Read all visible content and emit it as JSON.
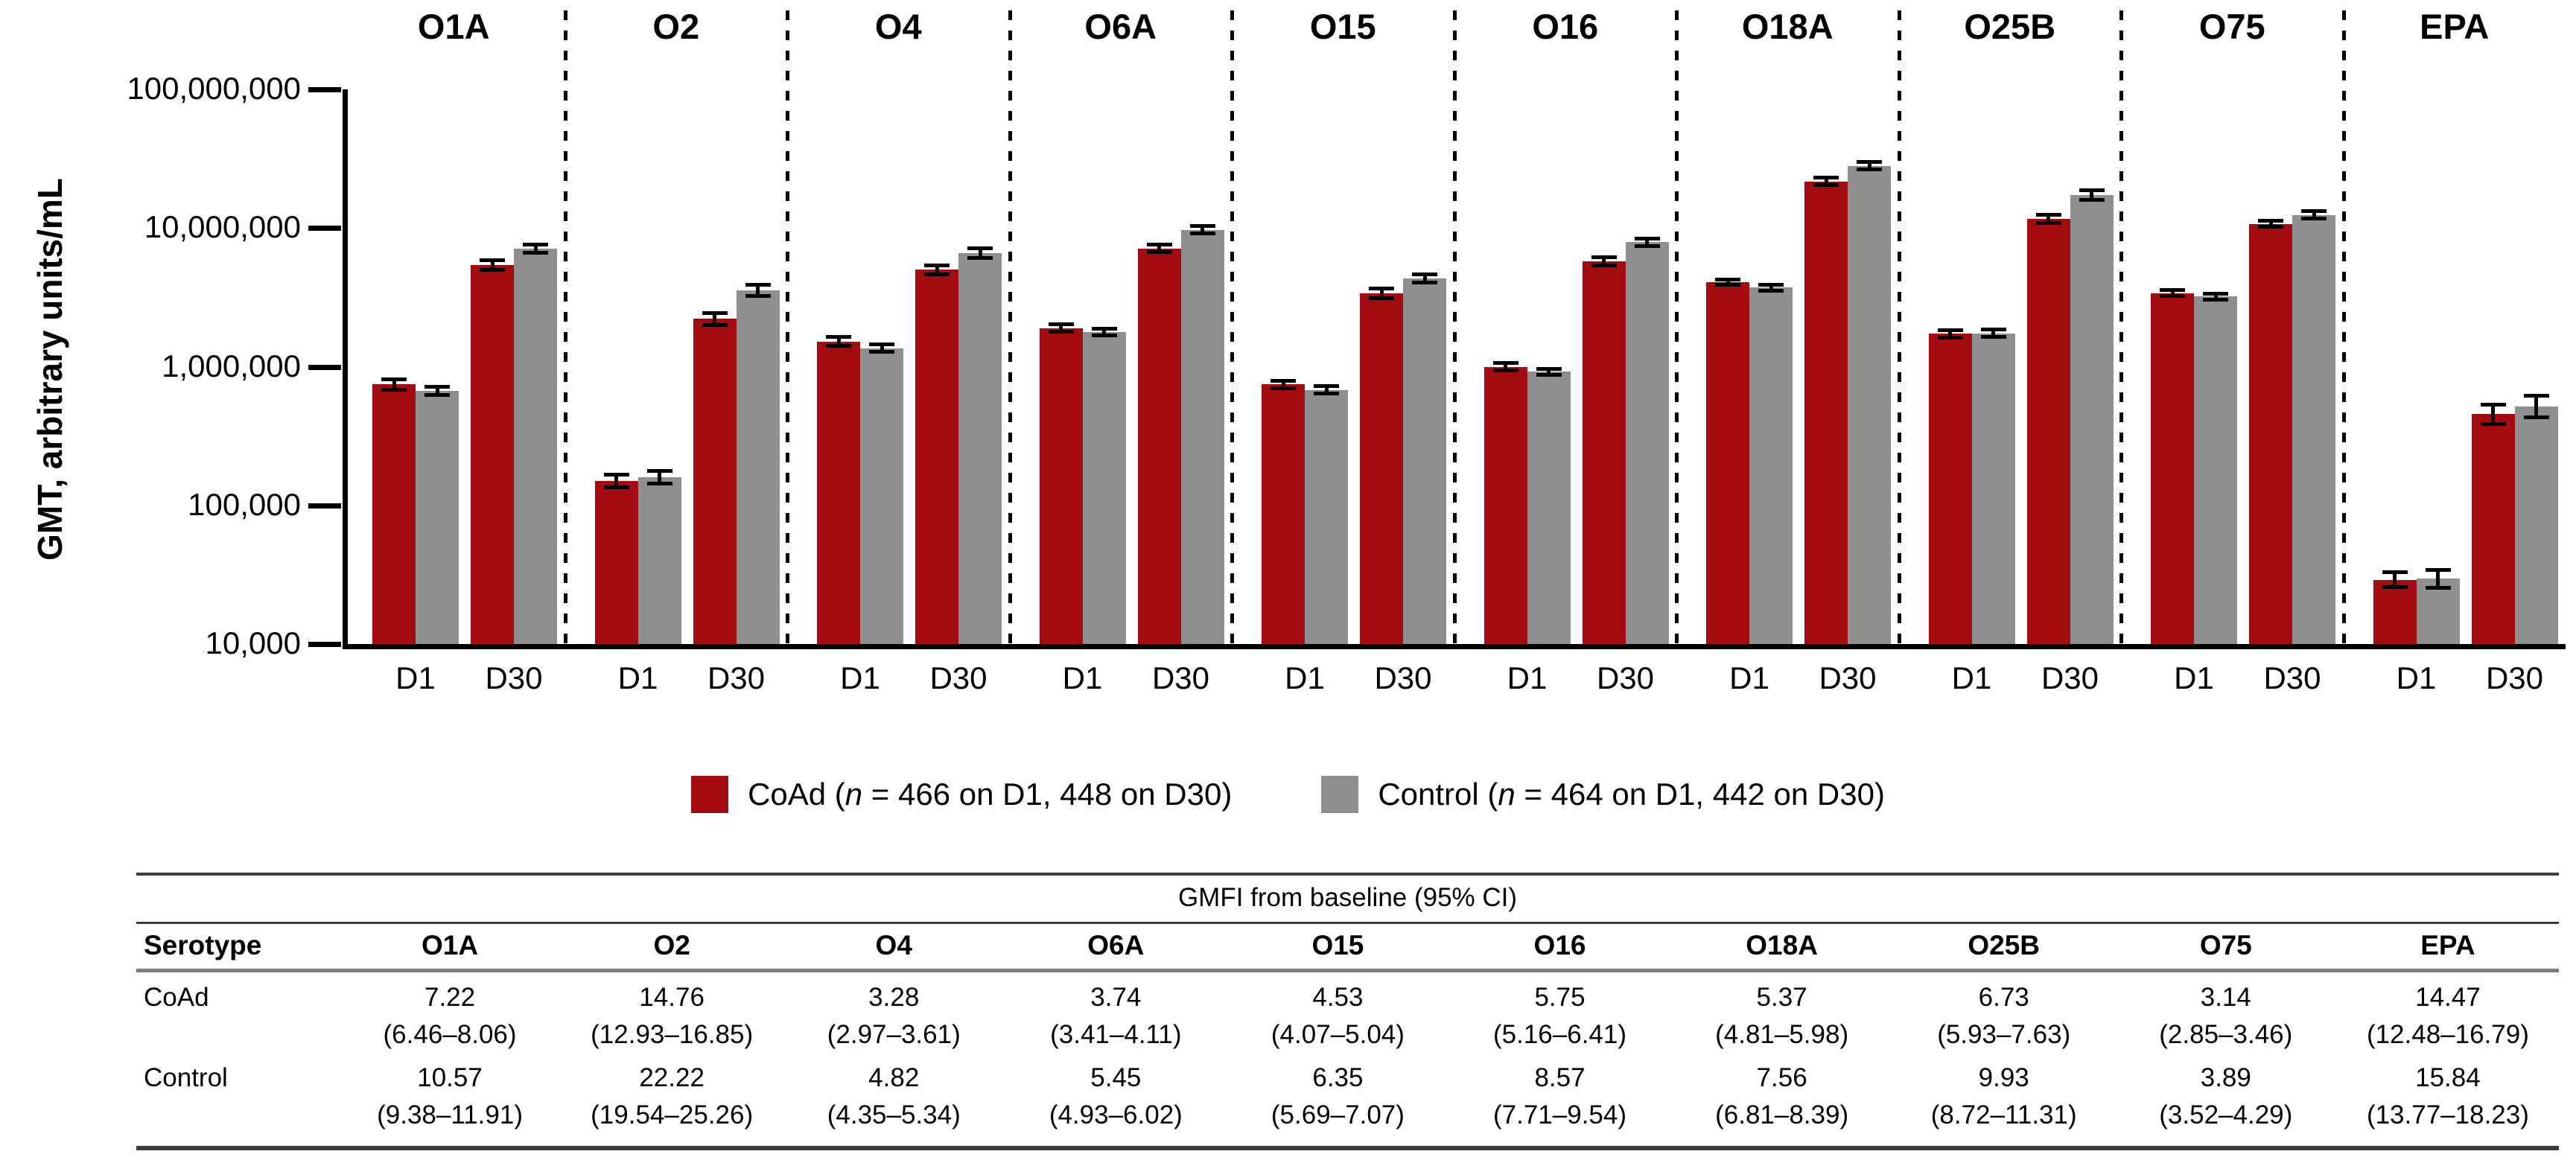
{
  "figure": {
    "y_axis_label": "GMT, arbitrary units/mL",
    "y_ticks": [
      "100,000,000",
      "10,000,000",
      "1,000,000",
      "100,000",
      "10,000"
    ]
  },
  "legend": {
    "items": [
      {
        "series": "CoAd",
        "color": "#A30D12",
        "prefix": "CoAd (",
        "n": "n",
        "rest": " = 466 on D1, 448 on D30)"
      },
      {
        "series": "Control",
        "color": "#8F8F8F",
        "prefix": "Control (",
        "n": "n",
        "rest": " = 464 on D1, 442 on D30)"
      }
    ]
  },
  "chart_data": {
    "type": "bar",
    "y_scale": "log10",
    "ylim": [
      10000,
      100000000
    ],
    "ylabel": "GMT, arbitrary units/mL",
    "groups": [
      "D1",
      "D30"
    ],
    "series": [
      "CoAd",
      "Control"
    ],
    "series_colors": {
      "CoAd": "#A30D12",
      "Control": "#8F8F8F"
    },
    "error_bars": "95% CI shown as whiskers; 'err' = estimated upper multiplicative factor per bar [D1 CoAd, D1 Control, D30 CoAd, D30 Control]",
    "panels": [
      {
        "serotype": "O1A",
        "D1": [
          745000,
          670000
        ],
        "D30": [
          5380000,
          7080000
        ],
        "err": [
          1.1,
          1.08,
          1.09,
          1.08
        ]
      },
      {
        "serotype": "O2",
        "D1": [
          150000,
          160000
        ],
        "D30": [
          2210000,
          3560000
        ],
        "err": [
          1.12,
          1.12,
          1.11,
          1.1
        ]
      },
      {
        "serotype": "O4",
        "D1": [
          1520000,
          1360000
        ],
        "D30": [
          4990000,
          6560000
        ],
        "err": [
          1.08,
          1.07,
          1.09,
          1.09
        ]
      },
      {
        "serotype": "O6A",
        "D1": [
          1900000,
          1780000
        ],
        "D30": [
          7110000,
          9700000
        ],
        "err": [
          1.07,
          1.06,
          1.07,
          1.07
        ]
      },
      {
        "serotype": "O15",
        "D1": [
          745000,
          680000
        ],
        "D30": [
          3370000,
          4320000
        ],
        "err": [
          1.07,
          1.07,
          1.09,
          1.08
        ]
      },
      {
        "serotype": "O16",
        "D1": [
          1000000,
          920000
        ],
        "D30": [
          5750000,
          7890000
        ],
        "err": [
          1.07,
          1.06,
          1.08,
          1.07
        ]
      },
      {
        "serotype": "O18A",
        "D1": [
          4050000,
          3720000
        ],
        "D30": [
          21700000,
          28100000
        ],
        "err": [
          1.05,
          1.06,
          1.07,
          1.07
        ]
      },
      {
        "serotype": "O25B",
        "D1": [
          1730000,
          1740000
        ],
        "D30": [
          11600000,
          17300000
        ],
        "err": [
          1.07,
          1.07,
          1.08,
          1.09
        ]
      },
      {
        "serotype": "O75",
        "D1": [
          3400000,
          3200000
        ],
        "D30": [
          10700000,
          12400000
        ],
        "err": [
          1.06,
          1.06,
          1.06,
          1.07
        ]
      },
      {
        "serotype": "EPA",
        "D1": [
          29000,
          29500
        ],
        "D30": [
          455000,
          515000
        ],
        "err": [
          1.14,
          1.16,
          1.18,
          1.2
        ]
      }
    ]
  },
  "table": {
    "caption": "GMFI from baseline (95% CI)",
    "row_header": "Serotype",
    "serotypes": [
      "O1A",
      "O2",
      "O4",
      "O6A",
      "O15",
      "O16",
      "O18A",
      "O25B",
      "O75",
      "EPA"
    ],
    "rows": [
      {
        "label": "CoAd",
        "values": [
          "7.22",
          "14.76",
          "3.28",
          "3.74",
          "4.53",
          "5.75",
          "5.37",
          "6.73",
          "3.14",
          "14.47"
        ],
        "cis": [
          "(6.46–8.06)",
          "(12.93–16.85)",
          "(2.97–3.61)",
          "(3.41–4.11)",
          "(4.07–5.04)",
          "(5.16–6.41)",
          "(4.81–5.98)",
          "(5.93–7.63)",
          "(2.85–3.46)",
          "(12.48–16.79)"
        ]
      },
      {
        "label": "Control",
        "values": [
          "10.57",
          "22.22",
          "4.82",
          "5.45",
          "6.35",
          "8.57",
          "7.56",
          "9.93",
          "3.89",
          "15.84"
        ],
        "cis": [
          "(9.38–11.91)",
          "(19.54–25.26)",
          "(4.35–5.34)",
          "(4.93–6.02)",
          "(5.69–7.07)",
          "(7.71–9.54)",
          "(6.81–8.39)",
          "(8.72–11.31)",
          "(3.52–4.29)",
          "(13.77–18.23)"
        ]
      }
    ]
  }
}
